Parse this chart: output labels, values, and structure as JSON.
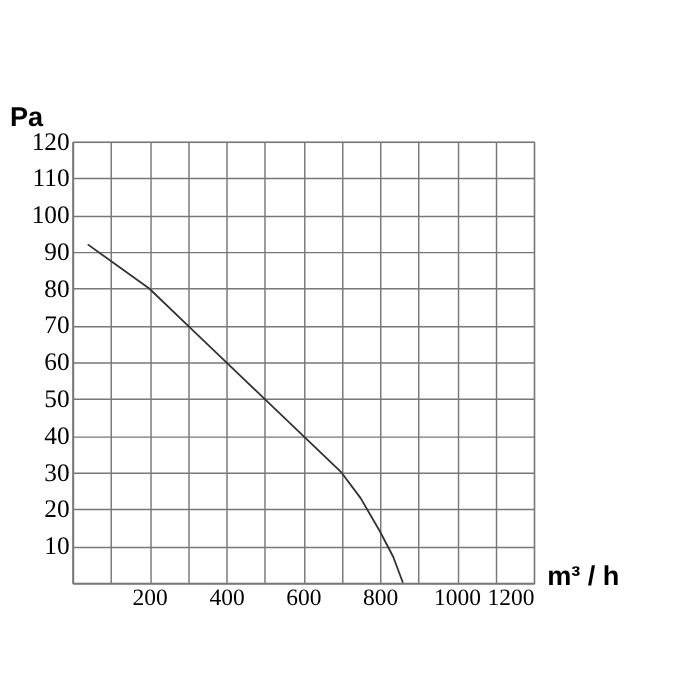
{
  "chart_data": {
    "type": "line",
    "xlabel": "m³ / h",
    "ylabel": "Pa",
    "x": [
      40,
      200,
      300,
      400,
      500,
      600,
      700,
      750,
      800,
      835,
      860
    ],
    "values": [
      92,
      80,
      70,
      60,
      50,
      40,
      30,
      23,
      14,
      7,
      0
    ],
    "color": "#333333",
    "marker": "none",
    "line_style": "solid",
    "grid": true,
    "xlim": [
      0,
      1200
    ],
    "ylim": [
      0,
      120
    ],
    "xticks": [
      {
        "value": 0,
        "label": null
      },
      {
        "value": 100,
        "label": null
      },
      200,
      {
        "value": 300,
        "label": null
      },
      400,
      {
        "value": 500,
        "label": null
      },
      600,
      {
        "value": 700,
        "label": null
      },
      800,
      {
        "value": 900,
        "label": null
      },
      1000,
      {
        "value": 1100,
        "label": null
      },
      1200
    ],
    "yticks": [
      {
        "value": 0,
        "label": null
      },
      10,
      20,
      30,
      40,
      50,
      60,
      70,
      80,
      90,
      100,
      110,
      120
    ]
  }
}
